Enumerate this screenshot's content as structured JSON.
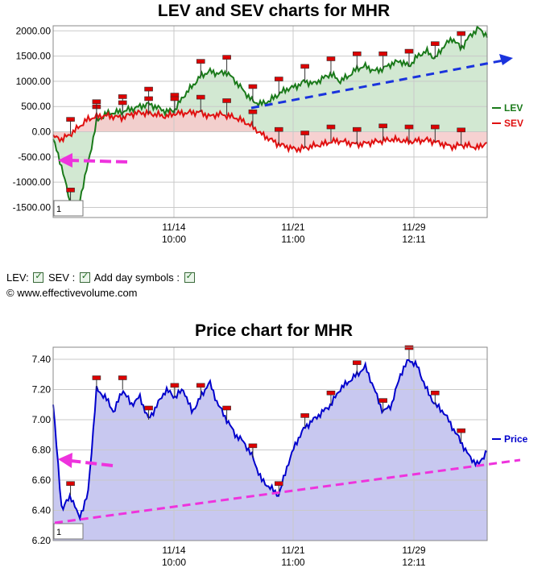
{
  "chart_data": [
    {
      "type": "line",
      "title": "LEV and SEV charts for MHR",
      "ylim": [
        -1700,
        2100
      ],
      "yticks": [
        "2000.00",
        "1500.00",
        "1000.00",
        "500.00",
        "0.00",
        "-500.00",
        "-1000.00",
        "-1500.00"
      ],
      "ytick_values": [
        2000,
        1500,
        1000,
        500,
        0,
        -500,
        -1000,
        -1500
      ],
      "xticks": [
        {
          "date": "11/14",
          "time": "10:00"
        },
        {
          "date": "11/21",
          "time": "11:00"
        },
        {
          "date": "11/29",
          "time": "12:11"
        }
      ],
      "series": [
        {
          "name": "LEV",
          "color": "#1a7a1a",
          "fill": "#cde6cd",
          "values": [
            -150,
            -700,
            -1450,
            -1400,
            -650,
            200,
            350,
            380,
            400,
            450,
            500,
            550,
            480,
            400,
            430,
            700,
            900,
            1100,
            1200,
            1150,
            1180,
            1000,
            800,
            600,
            550,
            620,
            750,
            850,
            900,
            1000,
            950,
            1050,
            1150,
            1000,
            1100,
            1250,
            1300,
            1200,
            1250,
            1350,
            1400,
            1300,
            1500,
            1600,
            1450,
            1700,
            1850,
            1650,
            1900,
            2050,
            1900
          ]
        },
        {
          "name": "SEV",
          "color": "#e01010",
          "fill": "#f5cccc",
          "values": [
            -100,
            -150,
            -50,
            100,
            250,
            300,
            320,
            300,
            280,
            350,
            380,
            360,
            340,
            300,
            360,
            370,
            380,
            390,
            300,
            350,
            320,
            280,
            200,
            100,
            -50,
            -150,
            -250,
            -300,
            -350,
            -320,
            -280,
            -250,
            -200,
            -180,
            -220,
            -250,
            -230,
            -200,
            -180,
            -150,
            -170,
            -200,
            -180,
            -160,
            -200,
            -250,
            -300,
            -260,
            -280,
            -320,
            -200
          ]
        }
      ],
      "box_label": "1",
      "legend_placement": "right"
    },
    {
      "type": "area",
      "title": "Price chart for MHR",
      "ylim": [
        6.2,
        7.48
      ],
      "yticks": [
        "7.40",
        "7.20",
        "7.00",
        "6.80",
        "6.60",
        "6.40",
        "6.20"
      ],
      "ytick_values": [
        7.4,
        7.2,
        7.0,
        6.8,
        6.6,
        6.4,
        6.2
      ],
      "xticks": [
        {
          "date": "11/14",
          "time": "10:00"
        },
        {
          "date": "11/21",
          "time": "11:00"
        },
        {
          "date": "11/29",
          "time": "12:11"
        }
      ],
      "series": [
        {
          "name": "Price",
          "color": "#0000cc",
          "fill": "#c8c8f0",
          "values": [
            7.1,
            6.4,
            6.5,
            6.35,
            6.5,
            7.2,
            7.15,
            7.05,
            7.2,
            7.1,
            7.15,
            7.0,
            7.1,
            7.2,
            7.15,
            7.2,
            7.05,
            7.15,
            7.25,
            7.1,
            7.0,
            6.9,
            6.85,
            6.75,
            6.6,
            6.55,
            6.5,
            6.7,
            6.85,
            6.95,
            7.0,
            7.05,
            7.1,
            7.2,
            7.25,
            7.3,
            7.35,
            7.2,
            7.05,
            7.1,
            7.3,
            7.4,
            7.35,
            7.2,
            7.1,
            7.05,
            6.95,
            6.85,
            6.75,
            6.7,
            6.8
          ]
        }
      ],
      "box_label": "1",
      "legend_placement": "right"
    }
  ],
  "controls": {
    "lev_label": "LEV:",
    "sev_label": "SEV :",
    "daysym_label": "Add day symbols :",
    "copyright": "© www.effectivevolume.com"
  },
  "colors": {
    "grid": "#c9c9c9",
    "trend_blue": "#1a33dd",
    "trend_magenta": "#ee33dd",
    "marker_red": "#dd0000"
  }
}
